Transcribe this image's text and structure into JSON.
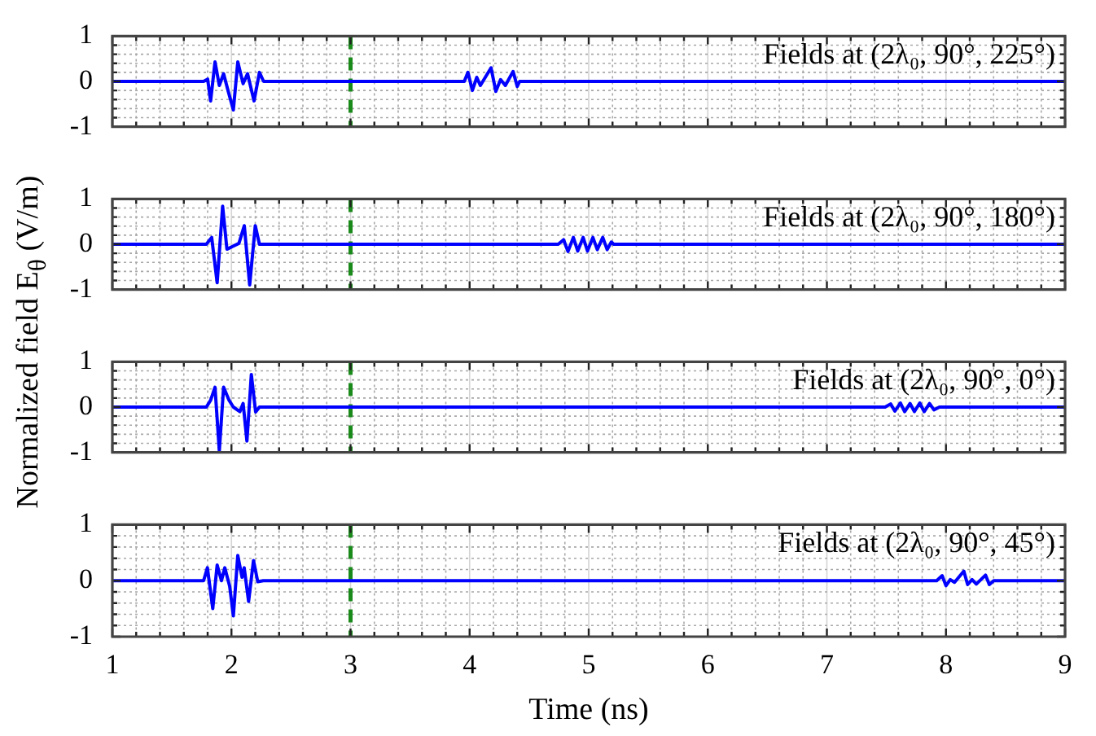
{
  "chart_data": [
    {
      "type": "line",
      "ylabel": "Normalized field E$_{θ}$ (V/m)",
      "annotations": [
        "Fields at (2λ₀, 90°, 225°)"
      ],
      "xlim": [
        1,
        9
      ],
      "ylim": [
        -1,
        1
      ],
      "tick_labels": "y",
      "grid": true,
      "xticks": [
        1,
        {
          "value": 1.2,
          "label": null
        },
        {
          "value": 1.4,
          "label": null
        },
        {
          "value": 1.6,
          "label": null
        },
        {
          "value": 1.8,
          "label": null
        },
        2,
        {
          "value": 2.2,
          "label": null
        },
        {
          "value": 2.4,
          "label": null
        },
        {
          "value": 2.6,
          "label": null
        },
        {
          "value": 2.8,
          "label": null
        },
        3,
        {
          "value": 3.2,
          "label": null
        },
        {
          "value": 3.4,
          "label": null
        },
        {
          "value": 3.6,
          "label": null
        },
        {
          "value": 3.8,
          "label": null
        },
        4,
        {
          "value": 4.2,
          "label": null
        },
        {
          "value": 4.4,
          "label": null
        },
        {
          "value": 4.6,
          "label": null
        },
        {
          "value": 4.8,
          "label": null
        },
        5,
        {
          "value": 5.2,
          "label": null
        },
        {
          "value": 5.4,
          "label": null
        },
        {
          "value": 5.6,
          "label": null
        },
        {
          "value": 5.8,
          "label": null
        },
        6,
        {
          "value": 6.2,
          "label": null
        },
        {
          "value": 6.4,
          "label": null
        },
        {
          "value": 6.6,
          "label": null
        },
        {
          "value": 6.8,
          "label": null
        },
        7,
        {
          "value": 7.2,
          "label": null
        },
        {
          "value": 7.4,
          "label": null
        },
        {
          "value": 7.6,
          "label": null
        },
        {
          "value": 7.8,
          "label": null
        },
        8,
        {
          "value": 8.2,
          "label": null
        },
        {
          "value": 8.4,
          "label": null
        },
        {
          "value": 8.6,
          "label": null
        },
        {
          "value": 8.8,
          "label": null
        },
        9
      ],
      "yticks": [
        -1,
        {
          "value": -0.8,
          "label": null
        },
        {
          "value": -0.6,
          "label": null
        },
        {
          "value": -0.4,
          "label": null
        },
        {
          "value": -0.2,
          "label": null
        },
        0,
        {
          "value": 0.2,
          "label": null
        },
        {
          "value": 0.4,
          "label": null
        },
        {
          "value": 0.6,
          "label": null
        },
        {
          "value": 0.8,
          "label": null
        },
        1
      ],
      "ref_lines": [
        {
          "axis": "x",
          "value": 3,
          "color": "#1a8a1a",
          "line_style": "dashed"
        }
      ],
      "series": [
        {
          "color": "#0000ff",
          "x": [
            1,
            1.766,
            1.8,
            1.825,
            1.862,
            1.898,
            1.934,
            1.971,
            2.016,
            2.053,
            2.098,
            2.135,
            2.19,
            2.235,
            2.27,
            3.955,
            3.986,
            4.023,
            4.06,
            4.09,
            4.12,
            4.18,
            4.22,
            4.26,
            4.3,
            4.365,
            4.4,
            4.42,
            9
          ],
          "values": [
            0,
            0,
            0.05,
            -0.43,
            0.43,
            -0.09,
            0.17,
            -0.2,
            -0.63,
            0.43,
            -0.05,
            0.17,
            -0.43,
            0.2,
            0,
            0,
            0.2,
            -0.2,
            0.09,
            -0.09,
            0.04,
            0.3,
            -0.22,
            0.04,
            -0.09,
            0.22,
            -0.11,
            0,
            0
          ]
        }
      ]
    },
    {
      "type": "line",
      "annotations": [
        "Fields at (2λ₀, 90°, 180°)"
      ],
      "xlim": [
        1,
        9
      ],
      "ylim": [
        -1,
        1
      ],
      "tick_labels": "y",
      "grid": true,
      "xticks": [
        1,
        {
          "value": 1.2,
          "label": null
        },
        {
          "value": 1.4,
          "label": null
        },
        {
          "value": 1.6,
          "label": null
        },
        {
          "value": 1.8,
          "label": null
        },
        2,
        {
          "value": 2.2,
          "label": null
        },
        {
          "value": 2.4,
          "label": null
        },
        {
          "value": 2.6,
          "label": null
        },
        {
          "value": 2.8,
          "label": null
        },
        3,
        {
          "value": 3.2,
          "label": null
        },
        {
          "value": 3.4,
          "label": null
        },
        {
          "value": 3.6,
          "label": null
        },
        {
          "value": 3.8,
          "label": null
        },
        4,
        {
          "value": 4.2,
          "label": null
        },
        {
          "value": 4.4,
          "label": null
        },
        {
          "value": 4.6,
          "label": null
        },
        {
          "value": 4.8,
          "label": null
        },
        5,
        {
          "value": 5.2,
          "label": null
        },
        {
          "value": 5.4,
          "label": null
        },
        {
          "value": 5.6,
          "label": null
        },
        {
          "value": 5.8,
          "label": null
        },
        6,
        {
          "value": 6.2,
          "label": null
        },
        {
          "value": 6.4,
          "label": null
        },
        {
          "value": 6.6,
          "label": null
        },
        {
          "value": 6.8,
          "label": null
        },
        7,
        {
          "value": 7.2,
          "label": null
        },
        {
          "value": 7.4,
          "label": null
        },
        {
          "value": 7.6,
          "label": null
        },
        {
          "value": 7.8,
          "label": null
        },
        8,
        {
          "value": 8.2,
          "label": null
        },
        {
          "value": 8.4,
          "label": null
        },
        {
          "value": 8.6,
          "label": null
        },
        {
          "value": 8.8,
          "label": null
        },
        9
      ],
      "yticks": [
        -1,
        {
          "value": -0.8,
          "label": null
        },
        {
          "value": -0.6,
          "label": null
        },
        {
          "value": -0.4,
          "label": null
        },
        {
          "value": -0.2,
          "label": null
        },
        0,
        {
          "value": 0.2,
          "label": null
        },
        {
          "value": 0.4,
          "label": null
        },
        {
          "value": 0.6,
          "label": null
        },
        {
          "value": 0.8,
          "label": null
        },
        1
      ],
      "ref_lines": [
        {
          "axis": "x",
          "value": 3,
          "color": "#1a8a1a",
          "line_style": "dashed"
        }
      ],
      "series": [
        {
          "color": "#0000ff",
          "x": [
            1,
            1.789,
            1.834,
            1.88,
            1.926,
            1.962,
            2.016,
            2.063,
            2.108,
            2.153,
            2.2,
            2.235,
            4.744,
            4.789,
            4.826,
            4.871,
            4.908,
            4.953,
            4.99,
            5.035,
            5.072,
            5.118,
            5.155,
            5.19,
            5.21,
            9
          ],
          "values": [
            0,
            0,
            0.15,
            -0.85,
            0.84,
            -0.11,
            -0.04,
            0.02,
            0.41,
            -0.9,
            0.41,
            0,
            0,
            0.1,
            -0.16,
            0.15,
            -0.15,
            0.15,
            -0.15,
            0.15,
            -0.12,
            0.15,
            -0.12,
            0.05,
            0,
            0
          ]
        }
      ]
    },
    {
      "type": "line",
      "annotations": [
        "Fields at (2λ₀, 90°, 0°)"
      ],
      "xlim": [
        1,
        9
      ],
      "ylim": [
        -1,
        1
      ],
      "tick_labels": "y",
      "grid": true,
      "xticks": [
        1,
        {
          "value": 1.2,
          "label": null
        },
        {
          "value": 1.4,
          "label": null
        },
        {
          "value": 1.6,
          "label": null
        },
        {
          "value": 1.8,
          "label": null
        },
        2,
        {
          "value": 2.2,
          "label": null
        },
        {
          "value": 2.4,
          "label": null
        },
        {
          "value": 2.6,
          "label": null
        },
        {
          "value": 2.8,
          "label": null
        },
        3,
        {
          "value": 3.2,
          "label": null
        },
        {
          "value": 3.4,
          "label": null
        },
        {
          "value": 3.6,
          "label": null
        },
        {
          "value": 3.8,
          "label": null
        },
        4,
        {
          "value": 4.2,
          "label": null
        },
        {
          "value": 4.4,
          "label": null
        },
        {
          "value": 4.6,
          "label": null
        },
        {
          "value": 4.8,
          "label": null
        },
        5,
        {
          "value": 5.2,
          "label": null
        },
        {
          "value": 5.4,
          "label": null
        },
        {
          "value": 5.6,
          "label": null
        },
        {
          "value": 5.8,
          "label": null
        },
        6,
        {
          "value": 6.2,
          "label": null
        },
        {
          "value": 6.4,
          "label": null
        },
        {
          "value": 6.6,
          "label": null
        },
        {
          "value": 6.8,
          "label": null
        },
        7,
        {
          "value": 7.2,
          "label": null
        },
        {
          "value": 7.4,
          "label": null
        },
        {
          "value": 7.6,
          "label": null
        },
        {
          "value": 7.8,
          "label": null
        },
        8,
        {
          "value": 8.2,
          "label": null
        },
        {
          "value": 8.4,
          "label": null
        },
        {
          "value": 8.6,
          "label": null
        },
        {
          "value": 8.8,
          "label": null
        },
        9
      ],
      "yticks": [
        -1,
        {
          "value": -0.8,
          "label": null
        },
        {
          "value": -0.6,
          "label": null
        },
        {
          "value": -0.4,
          "label": null
        },
        {
          "value": -0.2,
          "label": null
        },
        0,
        {
          "value": 0.2,
          "label": null
        },
        {
          "value": 0.4,
          "label": null
        },
        {
          "value": 0.6,
          "label": null
        },
        {
          "value": 0.8,
          "label": null
        },
        1
      ],
      "ref_lines": [
        {
          "axis": "x",
          "value": 3,
          "color": "#1a8a1a",
          "line_style": "dashed"
        }
      ],
      "series": [
        {
          "color": "#0000ff",
          "x": [
            1,
            1.789,
            1.825,
            1.862,
            1.898,
            1.934,
            1.98,
            2.016,
            2.071,
            2.098,
            2.13,
            2.167,
            2.203,
            2.235,
            7.489,
            7.535,
            7.571,
            7.617,
            7.653,
            7.698,
            7.735,
            7.78,
            7.817,
            7.862,
            7.899,
            7.945,
            9
          ],
          "values": [
            0,
            0,
            0.15,
            0.44,
            -0.97,
            0.44,
            0.15,
            0,
            -0.1,
            0.08,
            -0.75,
            0.72,
            -0.11,
            0,
            0,
            0.07,
            -0.09,
            0.09,
            -0.1,
            0.08,
            -0.1,
            0.09,
            -0.1,
            0.08,
            -0.06,
            0,
            0
          ]
        }
      ]
    },
    {
      "type": "line",
      "xlabel": "Time (ns)",
      "annotations": [
        "Fields at (2λ₀, 90°, 45°)"
      ],
      "xlim": [
        1,
        9
      ],
      "ylim": [
        -1,
        1
      ],
      "grid": true,
      "xticks": [
        1,
        {
          "value": 1.2,
          "label": null
        },
        {
          "value": 1.4,
          "label": null
        },
        {
          "value": 1.6,
          "label": null
        },
        {
          "value": 1.8,
          "label": null
        },
        2,
        {
          "value": 2.2,
          "label": null
        },
        {
          "value": 2.4,
          "label": null
        },
        {
          "value": 2.6,
          "label": null
        },
        {
          "value": 2.8,
          "label": null
        },
        3,
        {
          "value": 3.2,
          "label": null
        },
        {
          "value": 3.4,
          "label": null
        },
        {
          "value": 3.6,
          "label": null
        },
        {
          "value": 3.8,
          "label": null
        },
        4,
        {
          "value": 4.2,
          "label": null
        },
        {
          "value": 4.4,
          "label": null
        },
        {
          "value": 4.6,
          "label": null
        },
        {
          "value": 4.8,
          "label": null
        },
        5,
        {
          "value": 5.2,
          "label": null
        },
        {
          "value": 5.4,
          "label": null
        },
        {
          "value": 5.6,
          "label": null
        },
        {
          "value": 5.8,
          "label": null
        },
        6,
        {
          "value": 6.2,
          "label": null
        },
        {
          "value": 6.4,
          "label": null
        },
        {
          "value": 6.6,
          "label": null
        },
        {
          "value": 6.8,
          "label": null
        },
        7,
        {
          "value": 7.2,
          "label": null
        },
        {
          "value": 7.4,
          "label": null
        },
        {
          "value": 7.6,
          "label": null
        },
        {
          "value": 7.8,
          "label": null
        },
        8,
        {
          "value": 8.2,
          "label": null
        },
        {
          "value": 8.4,
          "label": null
        },
        {
          "value": 8.6,
          "label": null
        },
        {
          "value": 8.8,
          "label": null
        },
        9
      ],
      "yticks": [
        -1,
        {
          "value": -0.8,
          "label": null
        },
        {
          "value": -0.6,
          "label": null
        },
        {
          "value": -0.4,
          "label": null
        },
        {
          "value": -0.2,
          "label": null
        },
        0,
        {
          "value": 0.2,
          "label": null
        },
        {
          "value": 0.4,
          "label": null
        },
        {
          "value": 0.6,
          "label": null
        },
        {
          "value": 0.8,
          "label": null
        },
        1
      ],
      "ref_lines": [
        {
          "axis": "x",
          "value": 3,
          "color": "#1a8a1a",
          "line_style": "dashed"
        }
      ],
      "series": [
        {
          "color": "#0000ff",
          "x": [
            1,
            1.766,
            1.798,
            1.843,
            1.88,
            1.916,
            1.944,
            1.985,
            2.016,
            2.053,
            2.089,
            2.107,
            2.144,
            2.185,
            2.221,
            2.267,
            7.922,
            7.968,
            8.0,
            8.036,
            8.072,
            8.15,
            8.182,
            8.219,
            8.255,
            8.332,
            8.364,
            8.401,
            9
          ],
          "values": [
            0,
            0,
            0.23,
            -0.5,
            0.28,
            0,
            0.23,
            -0.1,
            -0.63,
            0.45,
            0.06,
            0.23,
            -0.37,
            0.36,
            -0.02,
            0,
            0,
            0.09,
            -0.09,
            0.02,
            -0.03,
            0.17,
            -0.07,
            0.02,
            -0.06,
            0.1,
            -0.07,
            0,
            0
          ]
        }
      ]
    }
  ]
}
